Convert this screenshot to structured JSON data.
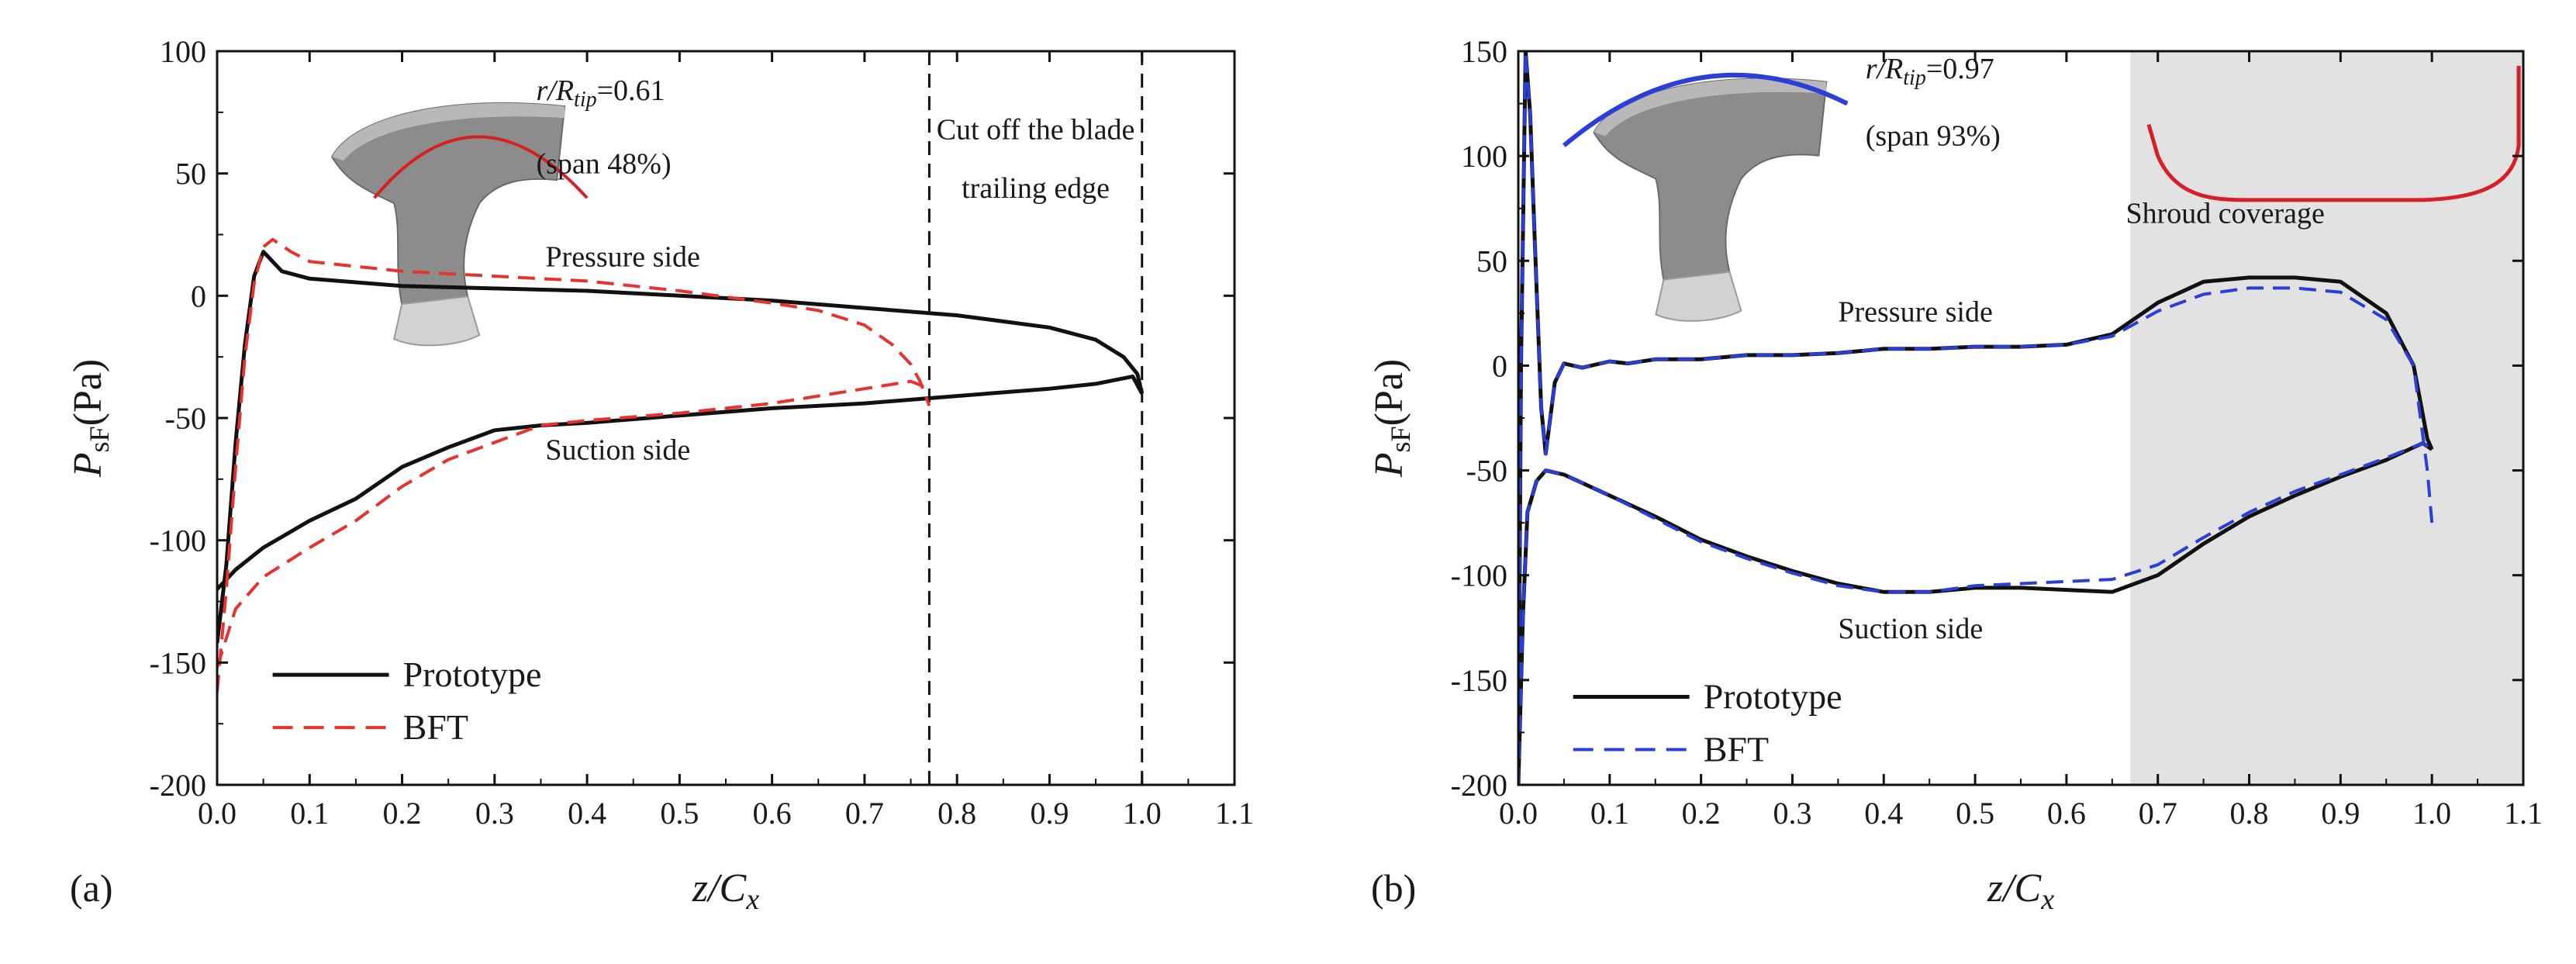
{
  "chart_data": [
    {
      "id": "a",
      "panel_label": "(a)",
      "type": "line",
      "xlabel": "z/C",
      "xlabel_sub": "x",
      "ylabel": "P",
      "ylabel_sub": "sF",
      "ylabel_unit": "(Pa)",
      "xlim": [
        0.0,
        1.1
      ],
      "ylim": [
        -200,
        100
      ],
      "xticks": [
        "0.0",
        "0.1",
        "0.2",
        "0.3",
        "0.4",
        "0.5",
        "0.6",
        "0.7",
        "0.8",
        "0.9",
        "1.0",
        "1.1"
      ],
      "yticks": [
        "100",
        "50",
        "0",
        "-50",
        "-100",
        "-150",
        "-200"
      ],
      "inset": {
        "ratio_prefix": "r/R",
        "ratio_sub": "tip",
        "ratio_value": "=0.61",
        "span": "(span  48%)",
        "line_color": "#d62020"
      },
      "vlines": [
        0.77,
        1.0
      ],
      "annotations": {
        "cut_line1": "Cut off the blade",
        "cut_line2": "trailing edge",
        "pressure": "Pressure side",
        "suction": "Suction side"
      },
      "legend": [
        {
          "name": "Prototype",
          "color": "#111111",
          "dash": "solid"
        },
        {
          "name": "BFT",
          "color": "#e8322e",
          "dash": "dashed"
        }
      ],
      "series": [
        {
          "name": "Prototype pressure side",
          "color": "#111111",
          "dash": "solid",
          "x": [
            0.0,
            0.01,
            0.02,
            0.03,
            0.04,
            0.05,
            0.055,
            0.07,
            0.1,
            0.2,
            0.3,
            0.4,
            0.5,
            0.6,
            0.7,
            0.8,
            0.9,
            0.95,
            0.98,
            0.995,
            1.0
          ],
          "y": [
            -142,
            -110,
            -60,
            -20,
            8,
            18,
            16,
            10,
            7,
            4,
            3,
            2,
            0,
            -2,
            -5,
            -8,
            -13,
            -18,
            -25,
            -32,
            -40
          ]
        },
        {
          "name": "Prototype suction side",
          "color": "#111111",
          "dash": "solid",
          "x": [
            0.0,
            0.02,
            0.05,
            0.1,
            0.15,
            0.2,
            0.25,
            0.3,
            0.35,
            0.4,
            0.5,
            0.6,
            0.7,
            0.8,
            0.9,
            0.95,
            0.99,
            1.0
          ],
          "y": [
            -120,
            -112,
            -103,
            -92,
            -83,
            -70,
            -62,
            -55,
            -53,
            -52,
            -49,
            -46,
            -44,
            -41,
            -38,
            -36,
            -33,
            -40
          ]
        },
        {
          "name": "BFT pressure side",
          "color": "#e8322e",
          "dash": "dashed",
          "x": [
            0.0,
            0.01,
            0.02,
            0.03,
            0.04,
            0.05,
            0.06,
            0.08,
            0.1,
            0.2,
            0.3,
            0.4,
            0.5,
            0.6,
            0.65,
            0.7,
            0.73,
            0.75,
            0.76,
            0.77
          ],
          "y": [
            -162,
            -120,
            -70,
            -25,
            5,
            20,
            23,
            18,
            14,
            10,
            8,
            6,
            2,
            -3,
            -6,
            -12,
            -20,
            -28,
            -35,
            -45
          ]
        },
        {
          "name": "BFT suction side",
          "color": "#e8322e",
          "dash": "dashed",
          "x": [
            0.0,
            0.02,
            0.05,
            0.1,
            0.15,
            0.2,
            0.25,
            0.3,
            0.35,
            0.4,
            0.5,
            0.6,
            0.7,
            0.75,
            0.77
          ],
          "y": [
            -152,
            -128,
            -115,
            -103,
            -92,
            -78,
            -67,
            -60,
            -53,
            -51,
            -48,
            -44,
            -38,
            -35,
            -38
          ]
        }
      ]
    },
    {
      "id": "b",
      "panel_label": "(b)",
      "type": "line",
      "xlabel": "z/C",
      "xlabel_sub": "x",
      "ylabel": "P",
      "ylabel_sub": "sF",
      "ylabel_unit": "(Pa)",
      "xlim": [
        0.0,
        1.1
      ],
      "ylim": [
        -200,
        150
      ],
      "xticks": [
        "0.0",
        "0.1",
        "0.2",
        "0.3",
        "0.4",
        "0.5",
        "0.6",
        "0.7",
        "0.8",
        "0.9",
        "1.0",
        "1.1"
      ],
      "yticks": [
        "150",
        "100",
        "50",
        "0",
        "-50",
        "-100",
        "-150",
        "-200"
      ],
      "inset": {
        "ratio_prefix": "r/R",
        "ratio_sub": "tip",
        "ratio_value": "=0.97",
        "span": "(span  93%)",
        "line_color": "#2a3ed8"
      },
      "shaded_region": {
        "x0": 0.67,
        "x1": 1.1,
        "label": "Shroud coverage",
        "color": "#e2e2e2"
      },
      "annotations": {
        "pressure": "Pressure side",
        "suction": "Suction side"
      },
      "legend": [
        {
          "name": "Prototype",
          "color": "#111111",
          "dash": "solid"
        },
        {
          "name": "BFT",
          "color": "#2a3ed8",
          "dash": "dashed"
        }
      ],
      "series": [
        {
          "name": "Prototype pressure side",
          "color": "#111111",
          "dash": "solid",
          "x": [
            0.0,
            0.003,
            0.008,
            0.013,
            0.018,
            0.025,
            0.03,
            0.04,
            0.05,
            0.07,
            0.1,
            0.12,
            0.15,
            0.2,
            0.25,
            0.3,
            0.35,
            0.4,
            0.45,
            0.5,
            0.55,
            0.6,
            0.65,
            0.7,
            0.75,
            0.8,
            0.85,
            0.9,
            0.95,
            0.98,
            0.995,
            1.0
          ],
          "y": [
            -200,
            0,
            150,
            120,
            60,
            -20,
            -42,
            -8,
            1,
            -1,
            2,
            1,
            3,
            3,
            5,
            5,
            6,
            8,
            8,
            9,
            9,
            10,
            15,
            30,
            40,
            42,
            42,
            40,
            25,
            0,
            -35,
            -40
          ]
        },
        {
          "name": "Prototype suction side",
          "color": "#111111",
          "dash": "solid",
          "x": [
            0.0,
            0.005,
            0.01,
            0.02,
            0.03,
            0.05,
            0.1,
            0.15,
            0.2,
            0.25,
            0.3,
            0.35,
            0.4,
            0.45,
            0.5,
            0.55,
            0.6,
            0.65,
            0.7,
            0.75,
            0.8,
            0.85,
            0.9,
            0.95,
            0.99,
            1.0
          ],
          "y": [
            -200,
            -120,
            -70,
            -55,
            -50,
            -52,
            -62,
            -72,
            -83,
            -91,
            -98,
            -104,
            -108,
            -108,
            -106,
            -106,
            -107,
            -108,
            -100,
            -85,
            -72,
            -62,
            -53,
            -45,
            -37,
            -40
          ]
        },
        {
          "name": "BFT pressure side",
          "color": "#2a3ed8",
          "dash": "dashed",
          "x": [
            0.0,
            0.003,
            0.008,
            0.013,
            0.018,
            0.025,
            0.03,
            0.04,
            0.05,
            0.07,
            0.1,
            0.12,
            0.15,
            0.2,
            0.25,
            0.3,
            0.35,
            0.4,
            0.45,
            0.5,
            0.55,
            0.6,
            0.65,
            0.7,
            0.75,
            0.8,
            0.85,
            0.9,
            0.95,
            0.98,
            0.995,
            1.0
          ],
          "y": [
            -200,
            0,
            150,
            120,
            60,
            -20,
            -42,
            -8,
            1,
            -1,
            2,
            1,
            3,
            3,
            5,
            5,
            6,
            8,
            8,
            9,
            9,
            10,
            14,
            26,
            34,
            37,
            37,
            35,
            22,
            0,
            -50,
            -75
          ]
        },
        {
          "name": "BFT suction side",
          "color": "#2a3ed8",
          "dash": "dashed",
          "x": [
            0.0,
            0.005,
            0.01,
            0.02,
            0.03,
            0.05,
            0.1,
            0.15,
            0.2,
            0.25,
            0.3,
            0.35,
            0.4,
            0.45,
            0.5,
            0.55,
            0.6,
            0.65,
            0.7,
            0.75,
            0.8,
            0.85,
            0.9,
            0.95,
            0.99,
            1.0
          ],
          "y": [
            -200,
            -120,
            -70,
            -55,
            -50,
            -52,
            -62,
            -73,
            -84,
            -92,
            -99,
            -105,
            -108,
            -108,
            -105,
            -104,
            -103,
            -102,
            -95,
            -82,
            -70,
            -60,
            -52,
            -44,
            -37,
            -40
          ]
        }
      ]
    }
  ]
}
